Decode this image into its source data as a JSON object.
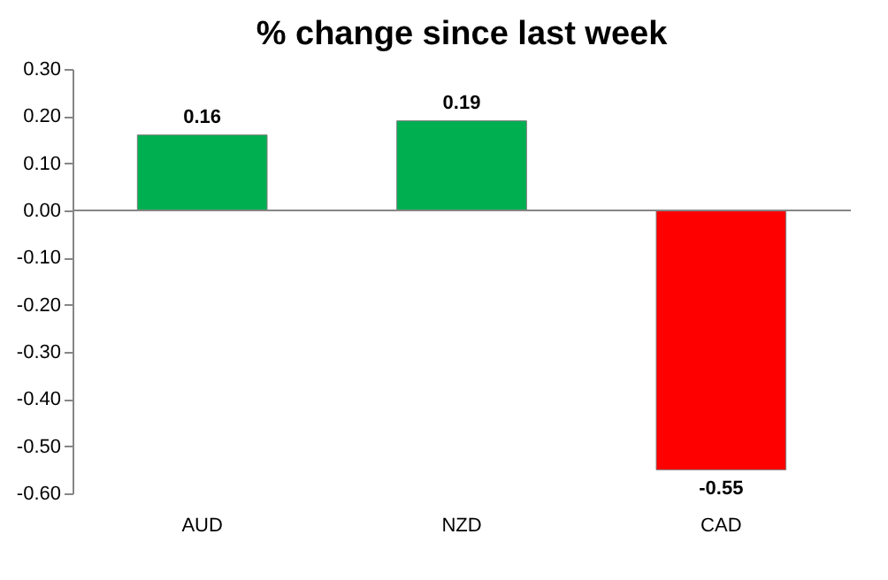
{
  "chart_data": {
    "type": "bar",
    "title": "% change since last week",
    "categories": [
      "AUD",
      "NZD",
      "CAD"
    ],
    "values": [
      0.16,
      0.19,
      -0.55
    ],
    "colors": [
      "#00b050",
      "#00b050",
      "#ff0000"
    ],
    "ylim": [
      -0.6,
      0.3
    ],
    "yticks": [
      {
        "value": -0.6,
        "label": "-0.60"
      },
      {
        "value": -0.5,
        "label": "-0.50"
      },
      {
        "value": -0.4,
        "label": "-0.40"
      },
      {
        "value": -0.3,
        "label": "-0.30"
      },
      {
        "value": -0.2,
        "label": "-0.20"
      },
      {
        "value": -0.1,
        "label": "-0.10"
      },
      {
        "value": 0,
        "label": "0.00"
      },
      {
        "value": 0.1,
        "label": "0.10"
      },
      {
        "value": 0.2,
        "label": "0.20"
      },
      {
        "value": 0.3,
        "label": "0.30"
      }
    ],
    "ref_lines": [
      {
        "axis": "y",
        "value": 0,
        "color": "#868686"
      }
    ],
    "data_labels": true,
    "grid": false
  }
}
